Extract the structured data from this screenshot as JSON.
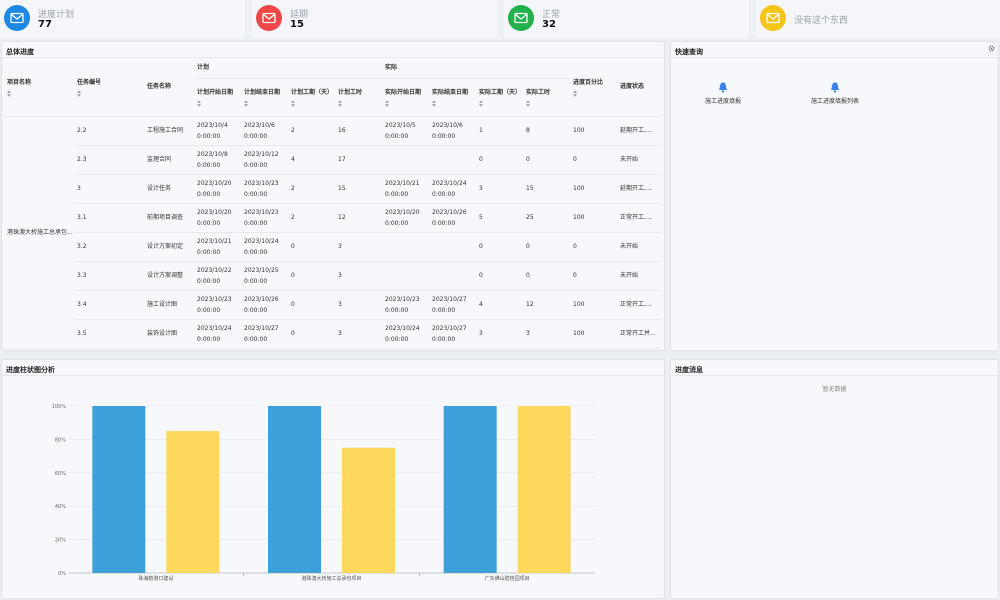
{
  "cards": [
    {
      "title": "进度计划",
      "count": 77,
      "color": "#1e88e5"
    },
    {
      "title": "延期",
      "count": 15,
      "color": "#f04848"
    },
    {
      "title": "正常",
      "count": 32,
      "color": "#22b14c"
    },
    {
      "title": "没有这个东西",
      "color": "#f5c518"
    }
  ],
  "progress_table": {
    "title": "总体进度",
    "headers": [
      {
        "label": "项目名称",
        "sortable": true
      },
      {
        "label": "任务编号",
        "sortable": true
      },
      {
        "label": "任务名称"
      },
      {
        "label": "计划",
        "children": [
          {
            "label": "计划开始日期",
            "sortable": true
          },
          {
            "label": "计划结束日期",
            "sortable": true
          },
          {
            "label": "计划工期（天）",
            "sortable": true
          },
          {
            "label": "计划工时",
            "sortable": true
          }
        ]
      },
      {
        "label": "实际",
        "children": [
          {
            "label": "实际开始日期",
            "sortable": true
          },
          {
            "label": "实际结束日期",
            "sortable": true
          },
          {
            "label": "实际工期（天）",
            "sortable": true
          },
          {
            "label": "实际工时",
            "sortable": true
          }
        ]
      },
      {
        "label": "进度百分比",
        "sortable": true
      },
      {
        "label": "进度状态"
      }
    ],
    "project_name": "港珠澳大桥施工总承包...",
    "rows": [
      [
        "2.2",
        "工程施工合同",
        "2023/10/4 0:00:00",
        "2023/10/6 0:00:00",
        2,
        16,
        "2023/10/5 0:00:00",
        "2023/10/6 0:00:00",
        1,
        8,
        100,
        "延期开工,..."
      ],
      [
        "2.3",
        "监理合同",
        "2023/10/8 0:00:00",
        "2023/10/12 0:00:00",
        4,
        17,
        null,
        null,
        0,
        0,
        0,
        "未开始"
      ],
      [
        "3",
        "设计任务",
        "2023/10/20 0:00:00",
        "2023/10/23 0:00:00",
        2,
        15,
        "2023/10/21 0:00:00",
        "2023/10/24 0:00:00",
        3,
        15,
        100,
        "延期开工,..."
      ],
      [
        "3.1",
        "前期项目调查",
        "2023/10/20 0:00:00",
        "2023/10/23 0:00:00",
        2,
        12,
        "2023/10/20 0:00:00",
        "2023/10/26 0:00:00",
        5,
        25,
        100,
        "正常开工,..."
      ],
      [
        "3.2",
        "设计方案初定",
        "2023/10/21 0:00:00",
        "2023/10/24 0:00:00",
        0,
        3,
        null,
        null,
        0,
        0,
        0,
        "未开始"
      ],
      [
        "3.3",
        "设计方案调整",
        "2023/10/22 0:00:00",
        "2023/10/25 0:00:00",
        0,
        3,
        null,
        null,
        0,
        0,
        0,
        "未开始"
      ],
      [
        "3.4",
        "施工设计图",
        "2023/10/23 0:00:00",
        "2023/10/26 0:00:00",
        0,
        3,
        "2023/10/23 0:00:00",
        "2023/10/27 0:00:00",
        4,
        12,
        100,
        "正常开工,..."
      ],
      [
        "3.5",
        "装饰设计图",
        "2023/10/24 0:00:00",
        "2023/10/27 0:00:00",
        0,
        3,
        "2023/10/24 0:00:00",
        "2023/10/27 0:00:00",
        3,
        3,
        100,
        "正常开工并..."
      ]
    ]
  },
  "quick_query": {
    "title": "快速查询",
    "links": [
      "施工进度填报",
      "施工进度填报列表"
    ]
  },
  "chart_data": {
    "type": "bar",
    "title": "进度柱状图分析",
    "categories": [
      "珠海鹤港口建设",
      "港珠澳大桥施工总承包项目",
      "广东佛山碧桂园项目"
    ],
    "series": [
      {
        "color": "#3ca0da",
        "values": [
          100,
          100,
          100
        ]
      },
      {
        "color": "#fdd85c",
        "values": [
          85,
          75,
          100
        ]
      }
    ],
    "ylim": [
      0,
      100
    ],
    "yticks": [
      {
        "value": 0,
        "label": "0%"
      },
      {
        "value": 20,
        "label": "20%"
      },
      {
        "value": 40,
        "label": "40%"
      },
      {
        "value": 60,
        "label": "60%"
      },
      {
        "value": 80,
        "label": "80%"
      },
      {
        "value": 100,
        "label": "100%"
      }
    ],
    "grid": true
  },
  "messages": {
    "title": "进度消息",
    "empty_text": "暂无数据"
  }
}
